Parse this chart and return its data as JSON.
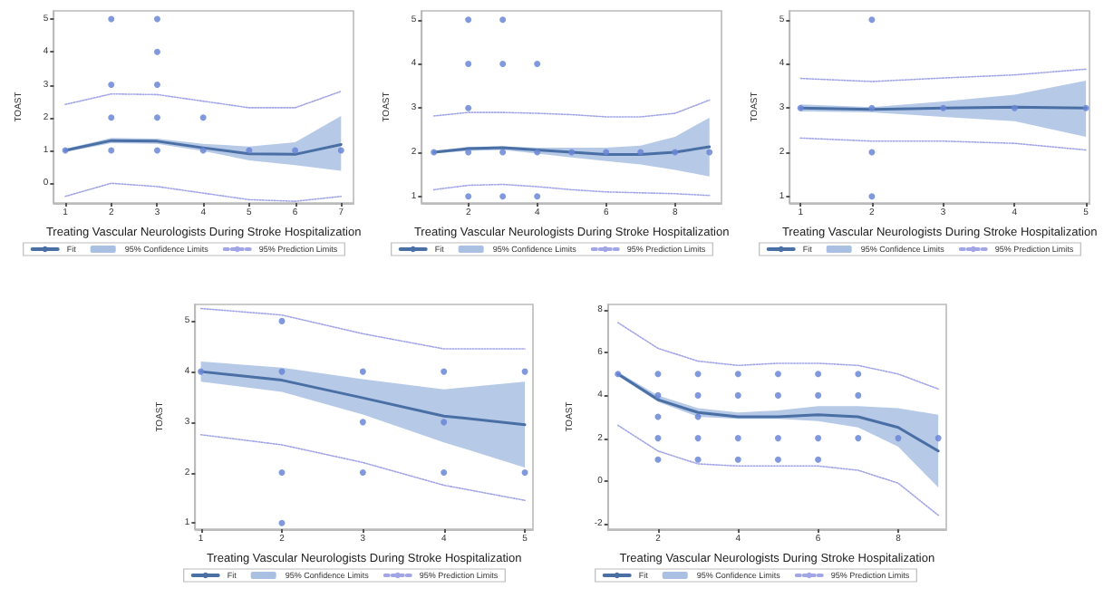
{
  "chart_data": [
    {
      "type": "line",
      "xlabel": "Treating Vascular Neurologists During Stroke Hospitalization",
      "ylabel": "TOAST",
      "annotations": [
        "95% Confidence Limits"
      ],
      "xlim": [
        0.75,
        7.27
      ],
      "xticks": [
        1,
        2,
        3,
        4,
        5,
        6,
        7
      ],
      "ylim": [
        -0.6,
        5.25
      ],
      "yticks": [
        0,
        1,
        2,
        3,
        4,
        5
      ],
      "grid": false,
      "legend": "bottom",
      "series": [
        {
          "name": "Fit",
          "type": "line",
          "color": "#4a6fa5",
          "line_style": "solid",
          "marker": "none",
          "x": [
            1,
            2,
            3,
            4,
            5,
            6,
            7
          ],
          "values": [
            1.0,
            1.3,
            1.28,
            1.08,
            0.9,
            0.88,
            1.18
          ],
          "lower": [
            0.95,
            1.22,
            1.2,
            0.98,
            0.7,
            0.55,
            0.38
          ],
          "upper": [
            1.05,
            1.38,
            1.36,
            1.2,
            1.12,
            1.25,
            2.05
          ]
        },
        {
          "name": "95% Prediction Limits",
          "type": "line",
          "color": "#a3a6e6",
          "line_style": "dotted",
          "marker": "none",
          "x": [
            1,
            2,
            3,
            4,
            5,
            6,
            7
          ],
          "values": [
            2.4,
            2.72,
            2.7,
            2.5,
            2.3,
            2.3,
            2.8
          ]
        },
        {
          "type": "line",
          "color": "#a3a6e6",
          "line_style": "dotted",
          "marker": "none",
          "x": [
            1,
            2,
            3,
            4,
            5,
            6,
            7
          ],
          "values": [
            -0.4,
            0.0,
            -0.1,
            -0.3,
            -0.5,
            -0.55,
            -0.4
          ]
        },
        {
          "type": "scatter",
          "color": "#6a86d6",
          "marker": "circle",
          "x": [
            1,
            2,
            2,
            2,
            2,
            3,
            3,
            3,
            3,
            3,
            4,
            4,
            5,
            6,
            7
          ],
          "values": [
            1,
            1,
            2,
            3,
            5,
            1,
            2,
            3,
            4,
            5,
            1,
            2,
            1,
            1,
            1
          ]
        }
      ]
    },
    {
      "type": "line",
      "xlabel": "Treating Vascular Neurologists During Stroke Hospitalization",
      "ylabel": "TOAST",
      "annotations": [
        "95% Confidence Limits"
      ],
      "xlim": [
        0.65,
        9.35
      ],
      "xticks": [
        2,
        4,
        6,
        8
      ],
      "ylim": [
        0.85,
        5.2
      ],
      "yticks": [
        1,
        2,
        3,
        4,
        5
      ],
      "grid": false,
      "legend": "bottom",
      "series": [
        {
          "name": "Fit",
          "type": "line",
          "color": "#4a6fa5",
          "line_style": "solid",
          "marker": "none",
          "x": [
            1,
            2,
            3,
            4,
            5,
            6,
            7,
            8,
            9
          ],
          "values": [
            2.0,
            2.08,
            2.1,
            2.05,
            2.0,
            1.95,
            1.95,
            2.0,
            2.12
          ],
          "lower": [
            1.97,
            2.03,
            2.05,
            1.97,
            1.88,
            1.8,
            1.72,
            1.6,
            1.45
          ],
          "upper": [
            2.03,
            2.12,
            2.13,
            2.1,
            2.1,
            2.1,
            2.15,
            2.35,
            2.78
          ]
        },
        {
          "name": "95% Prediction Limits",
          "type": "line",
          "color": "#a3a6e6",
          "line_style": "dotted",
          "marker": "none",
          "x": [
            1,
            2,
            3,
            4,
            5,
            6,
            7,
            8,
            9
          ],
          "values": [
            2.82,
            2.9,
            2.9,
            2.88,
            2.85,
            2.8,
            2.8,
            2.88,
            3.18
          ]
        },
        {
          "type": "line",
          "color": "#a3a6e6",
          "line_style": "dotted",
          "marker": "none",
          "x": [
            1,
            2,
            3,
            4,
            5,
            6,
            7,
            8,
            9
          ],
          "values": [
            1.15,
            1.25,
            1.27,
            1.22,
            1.15,
            1.1,
            1.08,
            1.06,
            1.02
          ]
        },
        {
          "type": "scatter",
          "color": "#6a86d6",
          "marker": "circle",
          "x": [
            1,
            2,
            2,
            2,
            2,
            2,
            3,
            3,
            3,
            3,
            4,
            4,
            4,
            5,
            6,
            7,
            8,
            9
          ],
          "values": [
            2,
            1,
            2,
            3,
            4,
            5,
            1,
            2,
            4,
            5,
            1,
            2,
            4,
            2,
            2,
            2,
            2,
            2
          ]
        }
      ]
    },
    {
      "type": "line",
      "xlabel": "Treating Vascular Neurologists During Stroke Hospitalization",
      "ylabel": "TOAST",
      "annotations": [
        "95% Confidence Limits"
      ],
      "xlim": [
        0.85,
        5.05
      ],
      "xticks": [
        1,
        2,
        3,
        4,
        5
      ],
      "ylim": [
        0.85,
        5.2
      ],
      "yticks": [
        1,
        2,
        3,
        4,
        5
      ],
      "grid": false,
      "legend": "bottom",
      "series": [
        {
          "name": "Fit",
          "type": "line",
          "color": "#4a6fa5",
          "line_style": "solid",
          "marker": "none",
          "x": [
            1,
            2,
            3,
            4,
            5
          ],
          "values": [
            3.0,
            2.97,
            3.0,
            3.02,
            3.0
          ],
          "lower": [
            2.92,
            2.9,
            2.8,
            2.7,
            2.35
          ],
          "upper": [
            3.08,
            3.02,
            3.15,
            3.3,
            3.62
          ]
        },
        {
          "name": "95% Prediction Limits",
          "type": "line",
          "color": "#a3a6e6",
          "line_style": "dotted",
          "marker": "none",
          "x": [
            1,
            2,
            3,
            4,
            5
          ],
          "values": [
            3.67,
            3.6,
            3.68,
            3.75,
            3.88
          ]
        },
        {
          "type": "line",
          "color": "#a3a6e6",
          "line_style": "dotted",
          "marker": "none",
          "x": [
            1,
            2,
            3,
            4,
            5
          ],
          "values": [
            2.32,
            2.25,
            2.25,
            2.2,
            2.05
          ]
        },
        {
          "type": "scatter",
          "color": "#6a86d6",
          "marker": "circle",
          "x": [
            1,
            2,
            2,
            2,
            2,
            3,
            4,
            5
          ],
          "values": [
            3,
            1,
            2,
            3,
            5,
            3,
            3,
            3
          ]
        }
      ]
    },
    {
      "type": "line",
      "xlabel": "Treating Vascular Neurologists During Stroke Hospitalization",
      "ylabel": "TOAST",
      "annotations": [
        "95% Confidence Limits"
      ],
      "xlim": [
        0.93,
        5.1
      ],
      "xticks": [
        1,
        2,
        3,
        4,
        5
      ],
      "ylim": [
        0.88,
        5.33
      ],
      "yticks": [
        1,
        2,
        3,
        4,
        5
      ],
      "grid": false,
      "legend": "bottom",
      "series": [
        {
          "name": "Fit",
          "type": "line",
          "color": "#4a6fa5",
          "line_style": "solid",
          "marker": "none",
          "x": [
            1,
            2,
            3,
            4,
            5
          ],
          "values": [
            4.0,
            3.83,
            3.48,
            3.12,
            2.95
          ],
          "lower": [
            3.8,
            3.6,
            3.15,
            2.6,
            2.1
          ],
          "upper": [
            4.2,
            4.08,
            3.85,
            3.65,
            3.8
          ]
        },
        {
          "name": "95% Prediction Limits",
          "type": "line",
          "color": "#a3a6e6",
          "line_style": "dotted",
          "marker": "none",
          "x": [
            1,
            2,
            3,
            4,
            5
          ],
          "values": [
            5.25,
            5.12,
            4.75,
            4.45,
            4.45
          ]
        },
        {
          "type": "line",
          "color": "#a3a6e6",
          "line_style": "dotted",
          "marker": "none",
          "x": [
            1,
            2,
            3,
            4,
            5
          ],
          "values": [
            2.75,
            2.55,
            2.2,
            1.75,
            1.45
          ]
        },
        {
          "type": "scatter",
          "color": "#6a86d6",
          "marker": "circle",
          "x": [
            1,
            2,
            2,
            2,
            2,
            3,
            3,
            3,
            4,
            4,
            4,
            5,
            5
          ],
          "values": [
            4,
            1,
            2,
            4,
            5,
            2,
            3,
            4,
            2,
            3,
            4,
            2,
            4
          ]
        }
      ]
    },
    {
      "type": "line",
      "xlabel": "Treating Vascular Neurologists During Stroke Hospitalization",
      "ylabel": "TOAST",
      "annotations": [
        "95% Confidence Limits"
      ],
      "xlim": [
        0.75,
        9.2
      ],
      "xticks": [
        2,
        4,
        6,
        8
      ],
      "ylim": [
        -2.25,
        8.25
      ],
      "yticks": [
        -2,
        0,
        2,
        4,
        6,
        8
      ],
      "grid": false,
      "legend": "bottom",
      "series": [
        {
          "name": "Fit",
          "type": "line",
          "color": "#4a6fa5",
          "line_style": "solid",
          "marker": "none",
          "x": [
            1,
            2,
            3,
            4,
            5,
            6,
            7,
            8,
            9
          ],
          "values": [
            5.0,
            3.8,
            3.2,
            3.0,
            3.0,
            3.1,
            3.0,
            2.5,
            1.4
          ],
          "lower": [
            4.9,
            3.7,
            3.0,
            2.9,
            2.9,
            2.8,
            2.5,
            1.6,
            -0.3
          ],
          "upper": [
            5.1,
            4.0,
            3.4,
            3.2,
            3.3,
            3.5,
            3.5,
            3.4,
            3.1
          ]
        },
        {
          "name": "95% Prediction Limits",
          "type": "line",
          "color": "#a3a6e6",
          "line_style": "dotted",
          "marker": "none",
          "x": [
            1,
            2,
            3,
            4,
            5,
            6,
            7,
            8,
            9
          ],
          "values": [
            7.4,
            6.2,
            5.6,
            5.4,
            5.5,
            5.5,
            5.4,
            5.0,
            4.3
          ]
        },
        {
          "type": "line",
          "color": "#a3a6e6",
          "line_style": "dotted",
          "marker": "none",
          "x": [
            1,
            2,
            3,
            4,
            5,
            6,
            7,
            8,
            9
          ],
          "values": [
            2.6,
            1.4,
            0.8,
            0.7,
            0.7,
            0.7,
            0.5,
            -0.1,
            -1.6
          ]
        },
        {
          "type": "scatter",
          "color": "#6a86d6",
          "marker": "circle",
          "x": [
            1,
            2,
            2,
            2,
            2,
            2,
            3,
            3,
            3,
            3,
            3,
            4,
            4,
            4,
            4,
            5,
            5,
            5,
            5,
            6,
            6,
            6,
            6,
            7,
            7,
            7,
            8,
            9
          ],
          "values": [
            5,
            1,
            2,
            3,
            4,
            5,
            1,
            2,
            3,
            4,
            5,
            1,
            2,
            4,
            5,
            1,
            2,
            4,
            5,
            1,
            2,
            4,
            5,
            2,
            4,
            5,
            2,
            2
          ]
        }
      ]
    }
  ]
}
